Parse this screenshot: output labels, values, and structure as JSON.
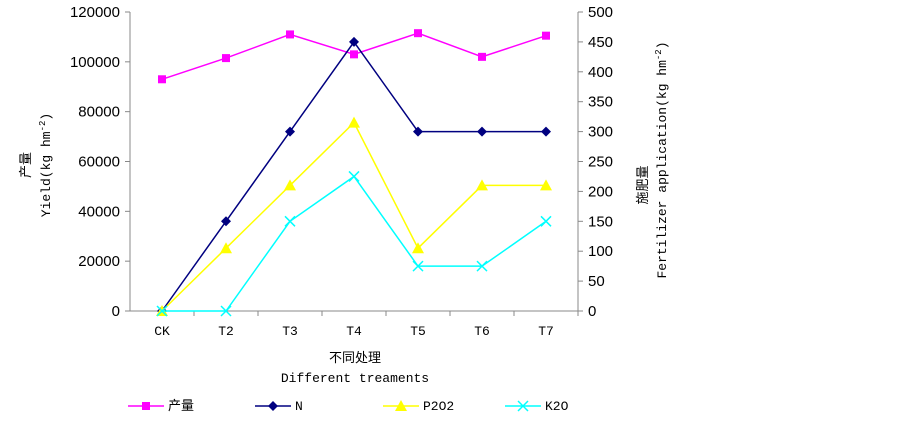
{
  "chart_data": {
    "type": "line",
    "categories": [
      "CK",
      "T2",
      "T3",
      "T4",
      "T5",
      "T6",
      "T7"
    ],
    "xlabel_cn": "不同处理",
    "xlabel_en": "Different treaments",
    "ylabel_cn": "产量",
    "ylabel_en": "Yield(kg hm",
    "ylabel_sup": "-2",
    "ylabel_close": ")",
    "y2label_cn": "施肥量",
    "y2label_en": "Fertilizer  application(kg hm",
    "y2label_sup": "-2",
    "y2label_close": ")",
    "ylim": [
      0,
      120000
    ],
    "yticks": [
      "0",
      "20000",
      "40000",
      "60000",
      "80000",
      "100000",
      "120000"
    ],
    "y2lim": [
      0,
      500
    ],
    "y2ticks": [
      "0",
      "50",
      "100",
      "150",
      "200",
      "250",
      "300",
      "350",
      "400",
      "450",
      "500"
    ],
    "legend_position": "bottom",
    "series": [
      {
        "name": "产量",
        "axis": "left",
        "color": "#ff00ff",
        "marker": "square",
        "values": [
          93000,
          101500,
          111000,
          103000,
          111500,
          102000,
          110500
        ]
      },
      {
        "name": "N",
        "axis": "right",
        "color": "#000080",
        "marker": "diamond",
        "values": [
          0,
          150,
          300,
          450,
          300,
          300,
          300
        ]
      },
      {
        "name": "P2O2",
        "axis": "right",
        "color": "#ffff00",
        "marker": "triangle",
        "values": [
          0,
          105,
          210,
          315,
          105,
          210,
          210
        ]
      },
      {
        "name": "K2O",
        "axis": "right",
        "color": "#00ffff",
        "marker": "x",
        "values": [
          0,
          0,
          150,
          225,
          75,
          75,
          150
        ]
      }
    ]
  }
}
